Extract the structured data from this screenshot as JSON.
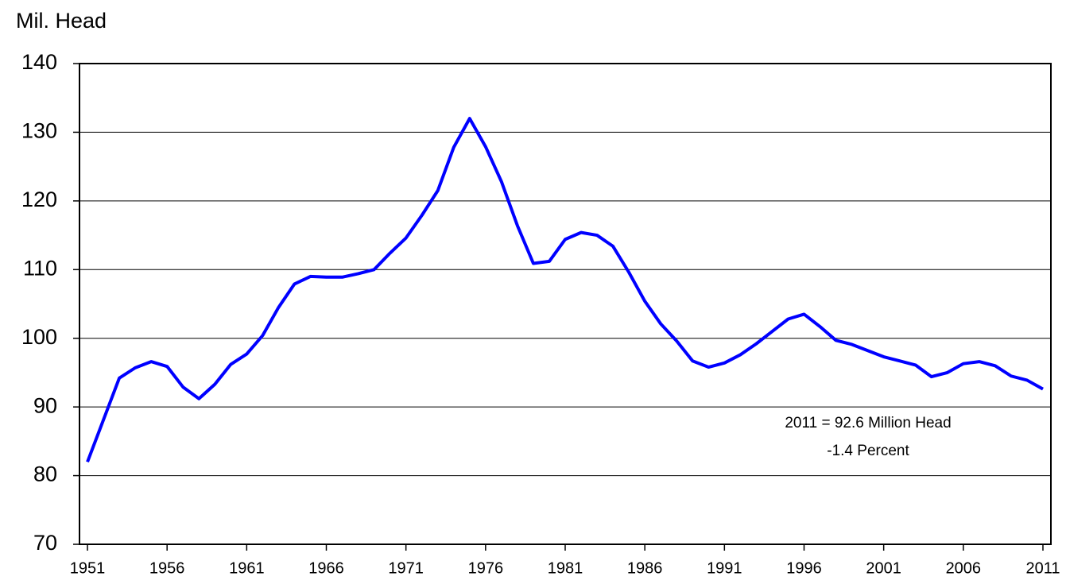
{
  "chart_data": {
    "type": "line",
    "ylabel": "Mil. Head",
    "x": [
      1951,
      1952,
      1953,
      1954,
      1955,
      1956,
      1957,
      1958,
      1959,
      1960,
      1961,
      1962,
      1963,
      1964,
      1965,
      1966,
      1967,
      1968,
      1969,
      1970,
      1971,
      1972,
      1973,
      1974,
      1975,
      1976,
      1977,
      1978,
      1979,
      1980,
      1981,
      1982,
      1983,
      1984,
      1985,
      1986,
      1987,
      1988,
      1989,
      1990,
      1991,
      1992,
      1993,
      1994,
      1995,
      1996,
      1997,
      1998,
      1999,
      2000,
      2001,
      2002,
      2003,
      2004,
      2005,
      2006,
      2007,
      2008,
      2009,
      2010,
      2011
    ],
    "series": [
      {
        "color": "#0000ff",
        "values": [
          82.0,
          88.1,
          94.2,
          95.7,
          96.6,
          95.9,
          92.9,
          91.2,
          93.3,
          96.2,
          97.7,
          100.4,
          104.5,
          107.9,
          109.0,
          108.9,
          108.9,
          109.4,
          110.0,
          112.4,
          114.6,
          117.9,
          121.5,
          127.8,
          132.0,
          127.9,
          122.8,
          116.4,
          110.9,
          111.2,
          114.4,
          115.4,
          115.0,
          113.4,
          109.6,
          105.4,
          102.1,
          99.6,
          96.7,
          95.8,
          96.4,
          97.6,
          99.2,
          101.0,
          102.8,
          103.5,
          101.7,
          99.7,
          99.1,
          98.2,
          97.3,
          96.7,
          96.1,
          94.4,
          95.0,
          96.3,
          96.6,
          96.0,
          94.5,
          93.9,
          92.6
        ]
      }
    ],
    "xlim": [
      1950.5,
      2011.5
    ],
    "xticks": [
      1951,
      1956,
      1961,
      1966,
      1971,
      1976,
      1981,
      1986,
      1991,
      1996,
      2001,
      2006,
      2011
    ],
    "ylim": [
      70,
      140
    ],
    "yticks": [
      70,
      80,
      90,
      100,
      110,
      120,
      130,
      140
    ],
    "grid": true,
    "annotations": [
      "2011 = 92.6 Million Head",
      "-1.4 Percent"
    ]
  }
}
